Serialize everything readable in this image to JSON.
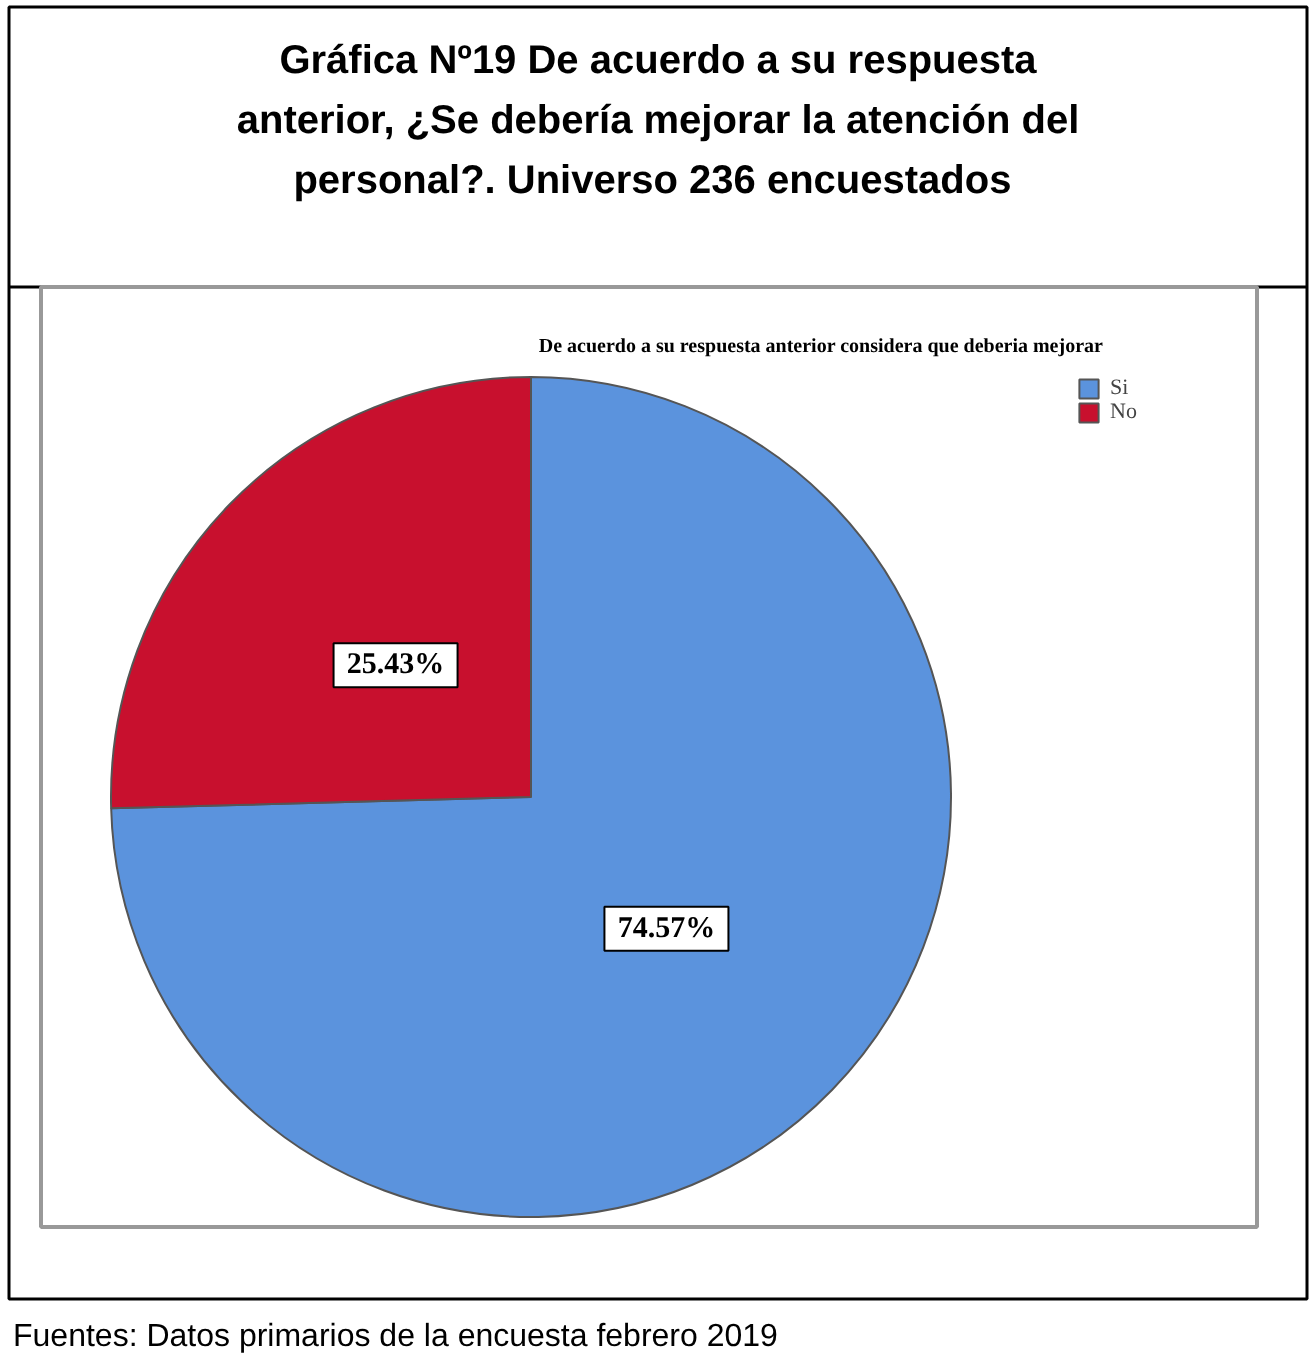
{
  "chart_data": {
    "type": "pie",
    "title": "Gráfica Nº19 De acuerdo a su respuesta anterior, ¿Se debería mejorar la atención del personal?.  Universo 236 encuestados",
    "subtitle": "De acuerdo a su respuesta anterior considera que deberia mejorar",
    "categories": [
      "Si",
      "No"
    ],
    "values": [
      74.57,
      25.43
    ],
    "colors": [
      "#5b93dd",
      "#c8102e"
    ],
    "value_labels": [
      "74.57%",
      "25.43%"
    ],
    "legend": "top right",
    "annotations": [
      "Fuentes: Datos primarios de la encuesta febrero 2019"
    ]
  }
}
